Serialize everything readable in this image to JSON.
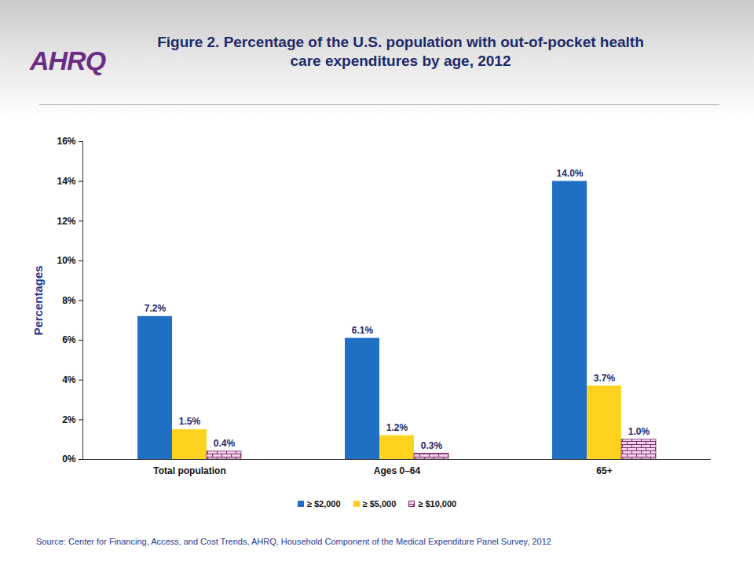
{
  "chart_data": {
    "type": "bar",
    "title": "Figure 2. Percentage of the U.S. population with out-of-pocket health care expenditures by age, 2012",
    "logo": "AHRQ",
    "source": "Source: Center for Financing, Access, and Cost Trends, AHRQ, Household Component of the Medical Expenditure Panel Survey, 2012",
    "ylabel": "Percentages",
    "categories": [
      "Total population",
      "Ages 0–64",
      "65+"
    ],
    "series": [
      {
        "name": "≥ $2,000",
        "color": "#1f6fc5",
        "values": [
          7.2,
          6.1,
          14.0
        ],
        "value_labels": [
          "7.2%",
          "6.1%",
          "14.0%"
        ]
      },
      {
        "name": "≥ $5,000",
        "color": "#ffd21f",
        "values": [
          1.5,
          1.2,
          3.7
        ],
        "value_labels": [
          "1.5%",
          "1.2%",
          "3.7%"
        ]
      },
      {
        "name": "≥ $10,000",
        "color": "#f6d2ec",
        "values": [
          0.4,
          0.3,
          1.0
        ],
        "value_labels": [
          "0.4%",
          "0.3%",
          "1.0%"
        ]
      }
    ],
    "ylim": [
      0,
      16
    ],
    "yticks": [
      {
        "value": 0,
        "label": "0%"
      },
      {
        "value": 2,
        "label": "2%"
      },
      {
        "value": 4,
        "label": "4%"
      },
      {
        "value": 6,
        "label": "6%"
      },
      {
        "value": 8,
        "label": "8%"
      },
      {
        "value": 10,
        "label": "10%"
      },
      {
        "value": 12,
        "label": "12%"
      },
      {
        "value": 14,
        "label": "14%"
      },
      {
        "value": 16,
        "label": "16%"
      }
    ],
    "data_labels": true,
    "legend": "bottom",
    "grid": false
  }
}
